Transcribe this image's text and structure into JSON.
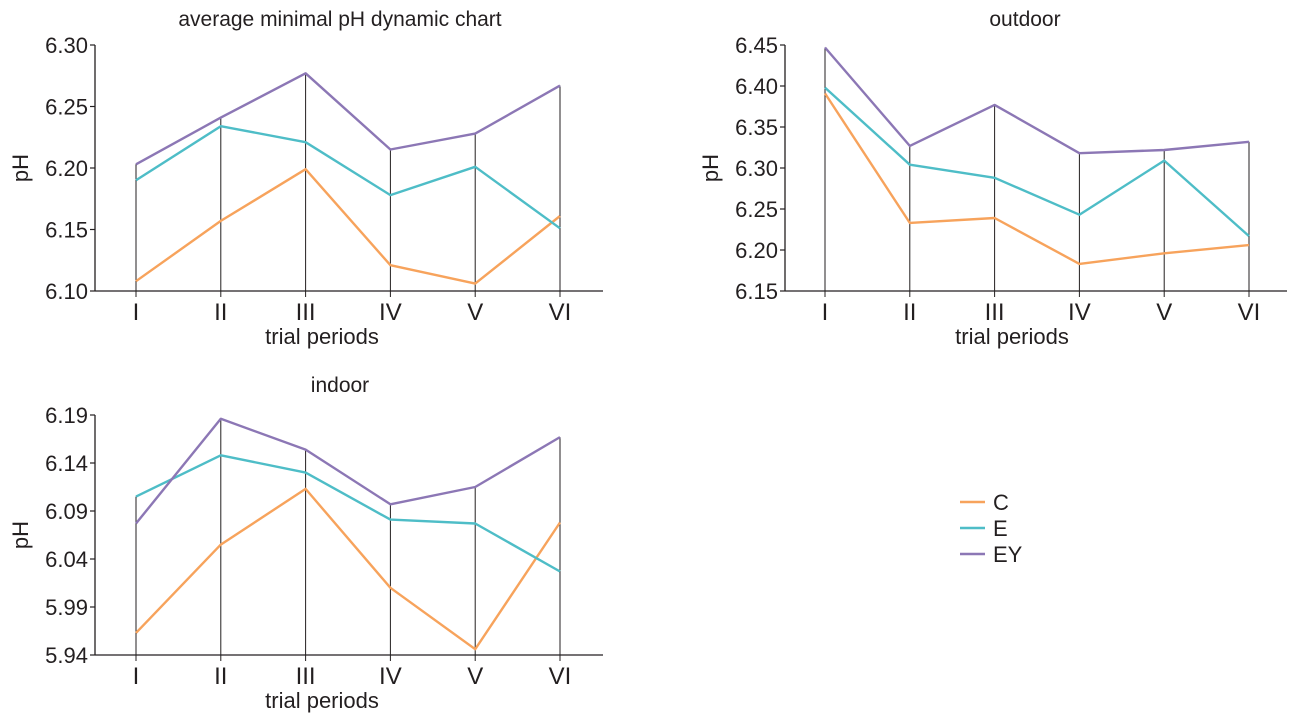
{
  "chart_data": [
    {
      "type": "line",
      "title": "average minimal pH dynamic chart",
      "xlabel": "trial periods",
      "ylabel": "pH",
      "categories": [
        "I",
        "II",
        "III",
        "IV",
        "V",
        "VI"
      ],
      "ylim": [
        6.1,
        6.3
      ],
      "yticks": [
        "6.10",
        "6.15",
        "6.20",
        "6.25",
        "6.30"
      ],
      "series": [
        {
          "name": "C",
          "values": [
            6.108,
            6.157,
            6.199,
            6.121,
            6.106,
            6.161
          ]
        },
        {
          "name": "E",
          "values": [
            6.19,
            6.234,
            6.221,
            6.178,
            6.201,
            6.151
          ]
        },
        {
          "name": "EY",
          "values": [
            6.203,
            6.241,
            6.277,
            6.215,
            6.228,
            6.267
          ]
        }
      ]
    },
    {
      "type": "line",
      "title": "outdoor",
      "xlabel": "trial periods",
      "ylabel": "pH",
      "categories": [
        "I",
        "II",
        "III",
        "IV",
        "V",
        "VI"
      ],
      "ylim": [
        6.15,
        6.45
      ],
      "yticks": [
        "6.15",
        "6.20",
        "6.25",
        "6.30",
        "6.35",
        "6.40",
        "6.45"
      ],
      "series": [
        {
          "name": "C",
          "values": [
            6.391,
            6.233,
            6.239,
            6.183,
            6.196,
            6.206
          ]
        },
        {
          "name": "E",
          "values": [
            6.398,
            6.304,
            6.288,
            6.243,
            6.309,
            6.217
          ]
        },
        {
          "name": "EY",
          "values": [
            6.447,
            6.327,
            6.377,
            6.318,
            6.322,
            6.332
          ]
        }
      ]
    },
    {
      "type": "line",
      "title": "indoor",
      "xlabel": "trial periods",
      "ylabel": "pH",
      "categories": [
        "I",
        "II",
        "III",
        "IV",
        "V",
        "VI"
      ],
      "ylim": [
        5.94,
        6.19
      ],
      "yticks": [
        "5.94",
        "5.99",
        "6.04",
        "6.09",
        "6.14",
        "6.19"
      ],
      "series": [
        {
          "name": "C",
          "values": [
            5.963,
            6.055,
            6.113,
            6.01,
            5.946,
            6.078
          ]
        },
        {
          "name": "E",
          "values": [
            6.105,
            6.148,
            6.13,
            6.081,
            6.077,
            6.027
          ]
        },
        {
          "name": "EY",
          "values": [
            6.077,
            6.186,
            6.154,
            6.097,
            6.115,
            6.167
          ]
        }
      ]
    }
  ],
  "legend": [
    {
      "name": "C",
      "color": "#f7a35c"
    },
    {
      "name": "E",
      "color": "#4ebdc7"
    },
    {
      "name": "EY",
      "color": "#8c77b5"
    }
  ]
}
